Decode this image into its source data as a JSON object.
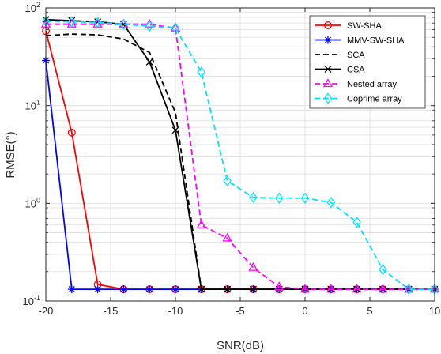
{
  "chart_data": {
    "type": "line",
    "xlabel": "SNR(dB)",
    "ylabel": "RMSE(°)",
    "xlim": [
      -20,
      10
    ],
    "ylim": [
      0.1,
      100
    ],
    "yscale": "log",
    "grid": true,
    "legend_position": "top-right",
    "x_ticks": [
      -20,
      -15,
      -10,
      -5,
      0,
      5,
      10
    ],
    "y_ticks": [
      0.1,
      1,
      10,
      100
    ],
    "y_tick_labels": [
      {
        "base": "10",
        "exp": "-1"
      },
      {
        "base": "10",
        "exp": "0"
      },
      {
        "base": "10",
        "exp": "1"
      },
      {
        "base": "10",
        "exp": "2"
      }
    ],
    "series": [
      {
        "name": "SW-SHA",
        "color": "#ff0000",
        "dash": "solid",
        "marker": "circle",
        "x": [
          -20,
          -18,
          -16,
          -14,
          -12,
          -10,
          -8,
          -6,
          -4,
          -2,
          0,
          2,
          4,
          6,
          8,
          10
        ],
        "y": [
          58,
          5.3,
          0.148,
          0.132,
          0.132,
          0.132,
          0.132,
          0.132,
          0.132,
          0.132,
          0.132,
          0.132,
          0.132,
          0.132,
          0.132,
          0.132
        ]
      },
      {
        "name": "MMV-SW-SHA",
        "color": "#0000ff",
        "dash": "solid",
        "marker": "star",
        "x": [
          -20,
          -18,
          -16,
          -14,
          -12,
          -10,
          -8,
          -6,
          -4,
          -2,
          0,
          2,
          4,
          6,
          8,
          10
        ],
        "y": [
          29,
          0.132,
          0.132,
          0.132,
          0.132,
          0.132,
          0.132,
          0.132,
          0.132,
          0.132,
          0.132,
          0.132,
          0.132,
          0.132,
          0.132,
          0.132
        ]
      },
      {
        "name": "SCA",
        "color": "#000000",
        "dash": "dashed",
        "marker": "none",
        "x": [
          -20,
          -18,
          -16,
          -14,
          -12,
          -10,
          -8,
          -6,
          -4,
          -2,
          0,
          2,
          4,
          6,
          8,
          10
        ],
        "y": [
          52,
          54,
          53,
          48,
          35,
          8.5,
          0.132,
          0.132,
          0.132,
          0.132,
          0.132,
          0.132,
          0.132,
          0.132,
          0.132,
          0.132
        ]
      },
      {
        "name": "CSA",
        "color": "#000000",
        "dash": "solid",
        "marker": "x",
        "x": [
          -20,
          -18,
          -16,
          -14,
          -12,
          -10,
          -8,
          -6,
          -4,
          -2,
          0,
          2,
          4,
          6,
          8,
          10
        ],
        "y": [
          76,
          74,
          72,
          68,
          28,
          5.6,
          0.132,
          0.132,
          0.132,
          0.132,
          0.132,
          0.132,
          0.132,
          0.132,
          0.132,
          0.132
        ]
      },
      {
        "name": "Nested array",
        "color": "#ff00ff",
        "dash": "dashed",
        "marker": "triangle",
        "x": [
          -20,
          -18,
          -16,
          -14,
          -12,
          -10,
          -8,
          -6,
          -4,
          -2,
          0,
          2,
          4,
          6,
          8,
          10
        ],
        "y": [
          68,
          68,
          68,
          68,
          68,
          62,
          0.6,
          0.44,
          0.22,
          0.14,
          0.132,
          0.132,
          0.132,
          0.132,
          0.132,
          0.132
        ]
      },
      {
        "name": "Coprime array",
        "color": "#00e5ff",
        "dash": "dashed",
        "marker": "diamond",
        "x": [
          -20,
          -18,
          -16,
          -14,
          -12,
          -10,
          -8,
          -6,
          -4,
          -2,
          0,
          2,
          4,
          6,
          8,
          10
        ],
        "y": [
          73,
          72,
          71,
          68,
          65,
          62,
          22,
          1.7,
          1.15,
          1.13,
          1.13,
          1.02,
          0.64,
          0.21,
          0.132,
          0.132
        ]
      }
    ]
  }
}
